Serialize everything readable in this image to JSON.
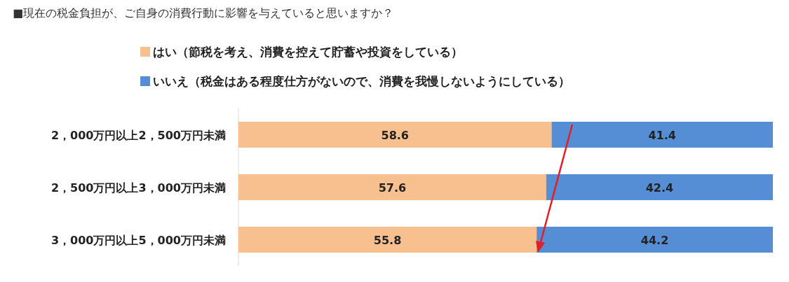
{
  "chart_data": {
    "type": "bar",
    "orientation": "horizontal",
    "stacked": true,
    "title": "■現在の税金負担が、ご自身の消費行動に影響を与えていると思いますか？",
    "categories": [
      "2，000万円以上2，500万円未満",
      "2，500万円以上3，000万円未満",
      "3，000万円以上5，000万円未満"
    ],
    "series": [
      {
        "name": "はい（節税を考え、消費を控えて貯蓄や投資をしている）",
        "color": "#f9c08f",
        "values": [
          58.6,
          57.6,
          55.8
        ]
      },
      {
        "name": "いいえ（税金はある程度仕方がないので、消費を我慢しないようにしている）",
        "color": "#558ed5",
        "values": [
          41.4,
          42.4,
          44.2
        ]
      }
    ],
    "data_labels": true,
    "legend": "top",
    "xlim": [
      0,
      100
    ],
    "tick_labels": "y"
  }
}
